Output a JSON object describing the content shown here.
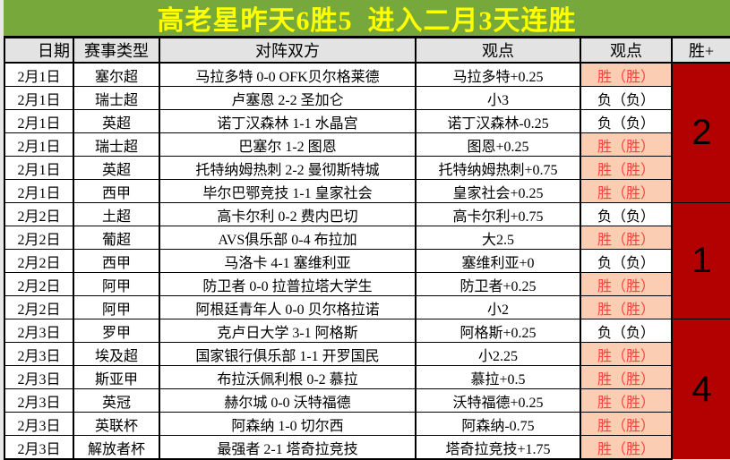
{
  "title": {
    "text": "高老星昨天6胜5  进入二月3天连胜"
  },
  "table": {
    "columns": [
      "日期",
      "赛事类型",
      "对阵双方",
      "观点",
      "观点",
      "胜+"
    ],
    "rows": [
      {
        "date": "2月1日",
        "league": "塞尔超",
        "match": "马拉多特 0-0 OFK贝尔格莱德",
        "view": "马拉多特+0.25",
        "result": "胜（胜）",
        "win": true
      },
      {
        "date": "2月1日",
        "league": "瑞士超",
        "match": "卢塞恩 2-2 圣加仑",
        "view": "小3",
        "result": "负（负）",
        "win": false
      },
      {
        "date": "2月1日",
        "league": "英超",
        "match": "诺丁汉森林 1-1 水晶宫",
        "view": "诺丁汉森林-0.25",
        "result": "负（负）",
        "win": false
      },
      {
        "date": "2月1日",
        "league": "瑞士超",
        "match": "巴塞尔 1-2 图恩",
        "view": "图恩+0.25",
        "result": "胜（胜）",
        "win": true
      },
      {
        "date": "2月1日",
        "league": "英超",
        "match": "托特纳姆热刺 2-2 曼彻斯特城",
        "view": "托特纳姆热刺+0.75",
        "result": "胜（胜）",
        "win": true
      },
      {
        "date": "2月1日",
        "league": "西甲",
        "match": "毕尔巴鄂竞技 1-1 皇家社会",
        "view": "皇家社会+0.25",
        "result": "胜（胜）",
        "win": true
      },
      {
        "date": "2月2日",
        "league": "土超",
        "match": "高卡尔利 0-2 费内巴切",
        "view": "高卡尔利+0.75",
        "result": "负（负）",
        "win": false
      },
      {
        "date": "2月2日",
        "league": "葡超",
        "match": "AVS俱乐部 0-4 布拉加",
        "view": "大2.5",
        "result": "胜（胜）",
        "win": true
      },
      {
        "date": "2月2日",
        "league": "西甲",
        "match": "马洛卡 4-1 塞维利亚",
        "view": "塞维利亚+0",
        "result": "负（负）",
        "win": false
      },
      {
        "date": "2月2日",
        "league": "阿甲",
        "match": "防卫者 0-0 拉普拉塔大学生",
        "view": "防卫者+0.25",
        "result": "胜（胜）",
        "win": true
      },
      {
        "date": "2月2日",
        "league": "阿甲",
        "match": "阿根廷青年人 0-0 贝尔格拉诺",
        "view": "小2",
        "result": "胜（胜）",
        "win": true
      },
      {
        "date": "2月3日",
        "league": "罗甲",
        "match": "克卢日大学 3-1 阿格斯",
        "view": "阿格斯+0.25",
        "result": "负（负）",
        "win": false
      },
      {
        "date": "2月3日",
        "league": "埃及超",
        "match": "国家银行俱乐部 1-1 开罗国民",
        "view": "小2.25",
        "result": "胜（胜）",
        "win": true
      },
      {
        "date": "2月3日",
        "league": "斯亚甲",
        "match": "布拉沃佩利根 0-2 慕拉",
        "view": "慕拉+0.5",
        "result": "胜（胜）",
        "win": true
      },
      {
        "date": "2月3日",
        "league": "英冠",
        "match": "赫尔城 0-0 沃特福德",
        "view": "沃特福德+0.25",
        "result": "胜（胜）",
        "win": true
      },
      {
        "date": "2月3日",
        "league": "英联杯",
        "match": "阿森纳 1-0 切尔西",
        "view": "阿森纳-0.75",
        "result": "胜（胜）",
        "win": true
      },
      {
        "date": "2月3日",
        "league": "解放者杯",
        "match": "最强者 2-1 塔奇拉竞技",
        "view": "塔奇拉竞技+1.75",
        "result": "胜（胜）",
        "win": true
      }
    ],
    "groups": [
      {
        "rows": 6,
        "value": "2"
      },
      {
        "rows": 5,
        "value": "1"
      },
      {
        "rows": 6,
        "value": "4"
      }
    ]
  },
  "colors": {
    "title_bg": "#76a83c",
    "title_text": "#ffff00",
    "header_bg": "#e3e3e3",
    "win_bg": "#fbcdb2",
    "win_text": "#f4443e",
    "block_bg": "#b30000",
    "border": "#000000"
  }
}
